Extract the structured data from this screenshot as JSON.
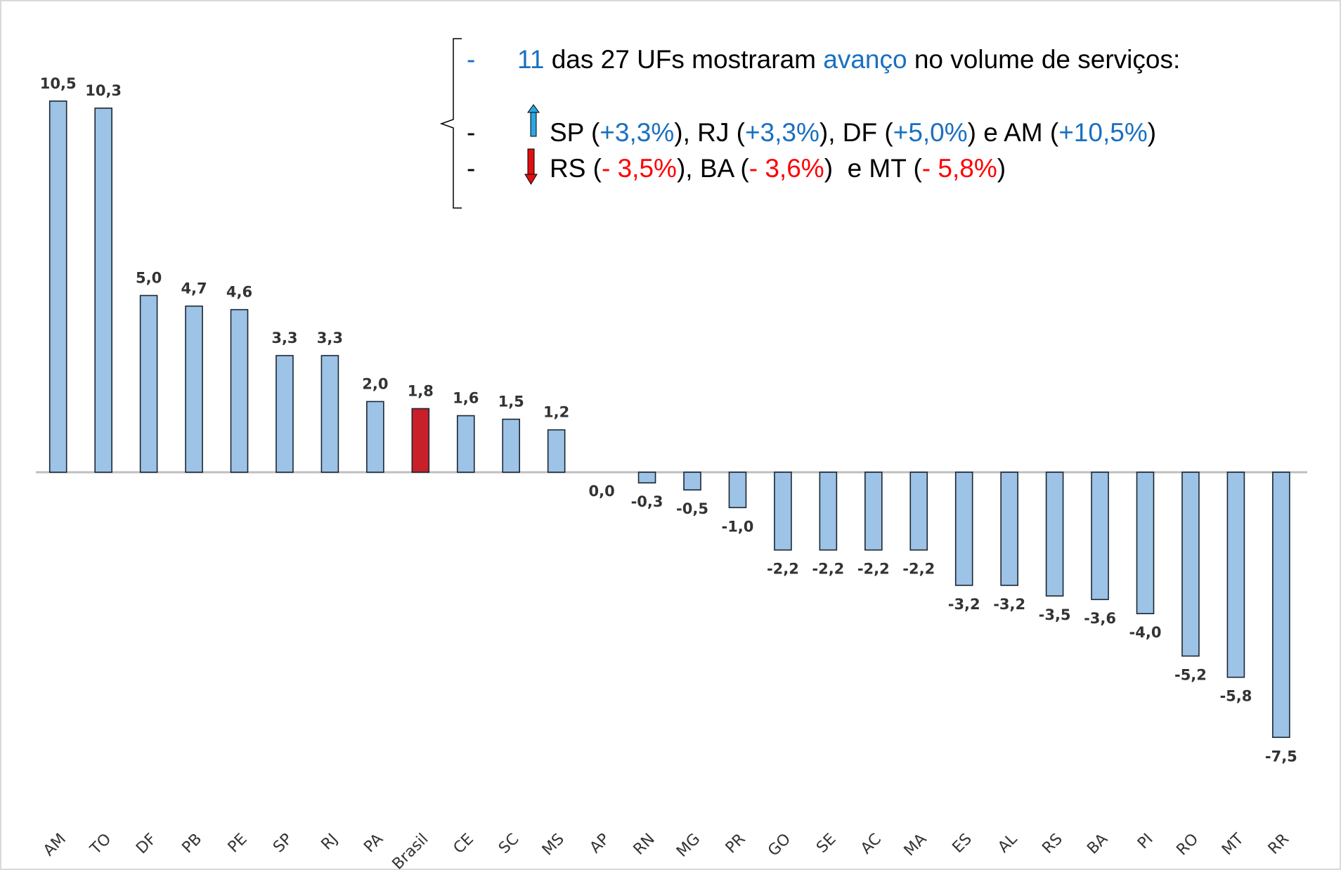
{
  "chart_data": {
    "type": "bar",
    "categories": [
      "AM",
      "TO",
      "DF",
      "PB",
      "PE",
      "SP",
      "RJ",
      "PA",
      "Brasil",
      "CE",
      "SC",
      "MS",
      "AP",
      "RN",
      "MG",
      "PR",
      "GO",
      "SE",
      "AC",
      "MA",
      "ES",
      "AL",
      "RS",
      "BA",
      "PI",
      "RO",
      "MT",
      "RR"
    ],
    "values": [
      10.5,
      10.3,
      5.0,
      4.7,
      4.6,
      3.3,
      3.3,
      2.0,
      1.8,
      1.6,
      1.5,
      1.2,
      0.0,
      -0.3,
      -0.5,
      -1.0,
      -2.2,
      -2.2,
      -2.2,
      -2.2,
      -3.2,
      -3.2,
      -3.5,
      -3.6,
      -4.0,
      -5.2,
      -5.8,
      -7.5
    ],
    "value_labels": [
      "10,5",
      "10,3",
      "5,0",
      "4,7",
      "4,6",
      "3,3",
      "3,3",
      "2,0",
      "1,8",
      "1,6",
      "1,5",
      "1,2",
      "0,0",
      "-0,3",
      "-0,5",
      "-1,0",
      "-2,2",
      "-2,2",
      "-2,2",
      "-2,2",
      "-3,2",
      "-3,2",
      "-3,5",
      "-3,6",
      "-4,0",
      "-5,2",
      "-5,8",
      "-7,5"
    ],
    "colors": [
      "#9dc3e6",
      "#9dc3e6",
      "#9dc3e6",
      "#9dc3e6",
      "#9dc3e6",
      "#9dc3e6",
      "#9dc3e6",
      "#9dc3e6",
      "#c8202b",
      "#9dc3e6",
      "#9dc3e6",
      "#9dc3e6",
      "#9dc3e6",
      "#9dc3e6",
      "#9dc3e6",
      "#9dc3e6",
      "#9dc3e6",
      "#9dc3e6",
      "#9dc3e6",
      "#9dc3e6",
      "#9dc3e6",
      "#9dc3e6",
      "#9dc3e6",
      "#9dc3e6",
      "#9dc3e6",
      "#9dc3e6",
      "#9dc3e6",
      "#9dc3e6"
    ],
    "annotation": {
      "lines": [
        {
          "bullet": "-",
          "segments": [
            {
              "text": "11",
              "color": "#1a70c0"
            },
            {
              "text": " das 27 UFs mostraram ",
              "color": "#000000"
            },
            {
              "text": "avanço",
              "color": "#1a70c0"
            },
            {
              "text": " no volume de serviços:",
              "color": "#000000"
            }
          ]
        },
        {
          "bullet": "-",
          "segments": [
            {
              "text": "SP (",
              "color": "#000000"
            },
            {
              "text": "+3,3%",
              "color": "#1a70c0"
            },
            {
              "text": "), RJ (",
              "color": "#000000"
            },
            {
              "text": "+3,3%",
              "color": "#1a70c0"
            },
            {
              "text": "), DF (",
              "color": "#000000"
            },
            {
              "text": "+5,0%",
              "color": "#1a70c0"
            },
            {
              "text": ") e AM (",
              "color": "#000000"
            },
            {
              "text": "+10,5%",
              "color": "#1a70c0"
            },
            {
              "text": ")",
              "color": "#000000"
            }
          ]
        },
        {
          "bullet": "-",
          "segments": [
            {
              "text": "RS (",
              "color": "#000000"
            },
            {
              "text": "- 3,5%",
              "color": "#ff0000"
            },
            {
              "text": "), BA (",
              "color": "#000000"
            },
            {
              "text": "- 3,6%",
              "color": "#ff0000"
            },
            {
              "text": ")  e MT (",
              "color": "#000000"
            },
            {
              "text": "- 5,8%",
              "color": "#ff0000"
            },
            {
              "text": ")",
              "color": "#000000"
            }
          ]
        }
      ]
    }
  }
}
